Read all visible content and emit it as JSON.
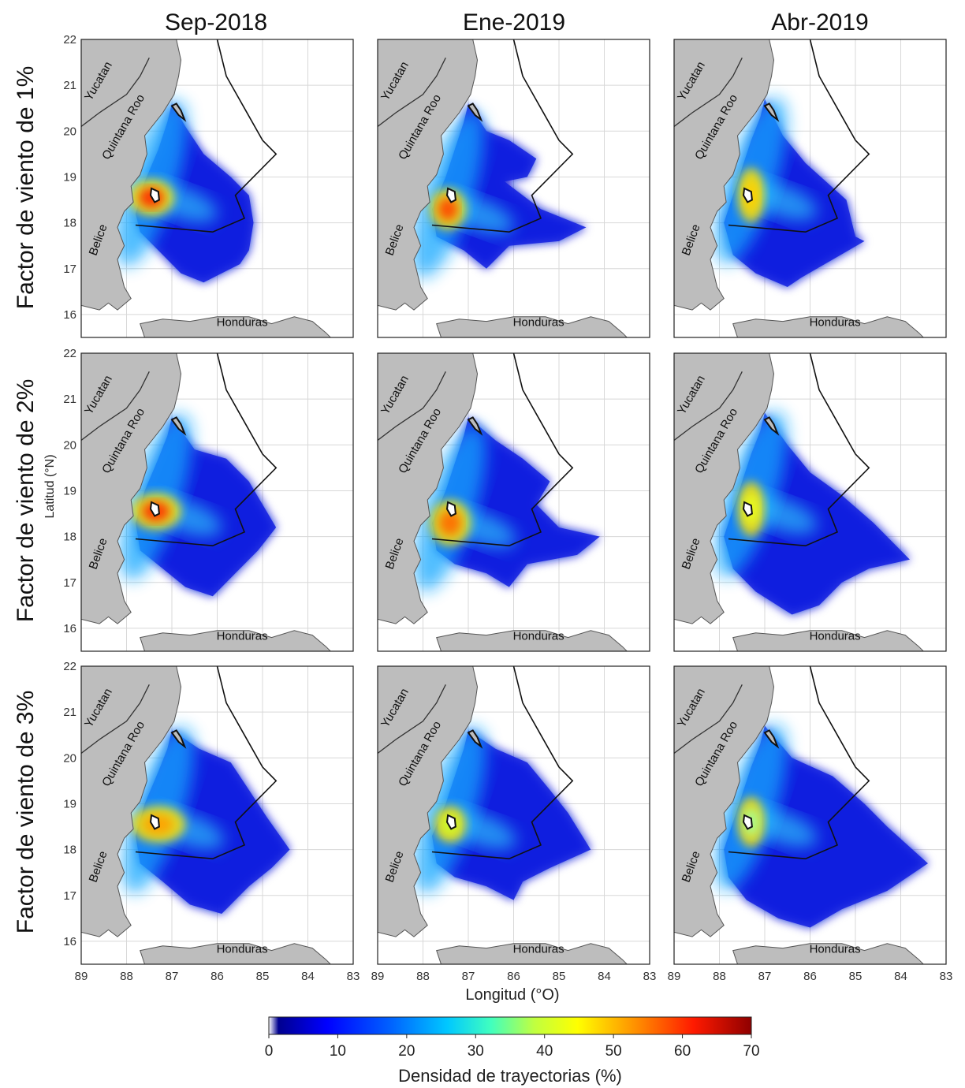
{
  "columns": [
    "Sep-2018",
    "Ene-2019",
    "Abr-2019"
  ],
  "rows": [
    "Factor de viento de 1%",
    "Factor de viento de 2%",
    "Factor de viento de 3%"
  ],
  "axes": {
    "ylabel": "Latitud (°N)",
    "xlabel": "Longitud (°O)",
    "lat_ticks": [
      "22",
      "21",
      "20",
      "19",
      "18",
      "17",
      "16"
    ],
    "lon_ticks": [
      "89",
      "88",
      "87",
      "86",
      "85",
      "84",
      "83"
    ],
    "lat_range": [
      15.5,
      22
    ],
    "lon_range": [
      89,
      83
    ]
  },
  "places": {
    "yucatan": "Yucatan",
    "quintana_roo": "Quintana Roo",
    "belice": "Belice",
    "honduras": "Honduras"
  },
  "colorbar": {
    "label": "Densidad de trayectorias (%)",
    "ticks": [
      "0",
      "10",
      "20",
      "30",
      "40",
      "50",
      "60",
      "70"
    ],
    "min": 0,
    "max": 70,
    "colors": [
      "#ffffff",
      "#00008f",
      "#0000ff",
      "#0060ff",
      "#00c8ff",
      "#40ffbf",
      "#c0ff40",
      "#ffff00",
      "#ff9000",
      "#ff1a00",
      "#8f0000"
    ]
  },
  "chart_data": {
    "type": "heatmap",
    "description_grid": "3 x 3 panels of trajectory density (%)",
    "panels": [
      {
        "row": "Factor de viento de 1%",
        "col": "Sep-2018",
        "peak_density": 62
      },
      {
        "row": "Factor de viento de 1%",
        "col": "Ene-2019",
        "peak_density": 55
      },
      {
        "row": "Factor de viento de 1%",
        "col": "Abr-2019",
        "peak_density": 45
      },
      {
        "row": "Factor de viento de 2%",
        "col": "Sep-2018",
        "peak_density": 58
      },
      {
        "row": "Factor de viento de 2%",
        "col": "Ene-2019",
        "peak_density": 52
      },
      {
        "row": "Factor de viento de 2%",
        "col": "Abr-2019",
        "peak_density": 40
      },
      {
        "row": "Factor de viento de 3%",
        "col": "Sep-2018",
        "peak_density": 50
      },
      {
        "row": "Factor de viento de 3%",
        "col": "Ene-2019",
        "peak_density": 42
      },
      {
        "row": "Factor de viento de 3%",
        "col": "Abr-2019",
        "peak_density": 38
      }
    ]
  }
}
